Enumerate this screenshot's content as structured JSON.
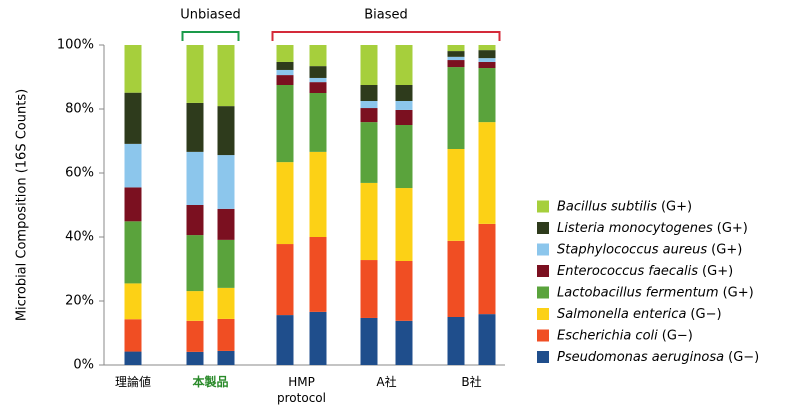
{
  "chart_data": {
    "type": "stacked_bar",
    "y_label": "Microbial Composition (16S Counts)",
    "categories": [
      "理論値",
      "本製品",
      null,
      "HMP protocol",
      null,
      "A社",
      null,
      "B社",
      null
    ],
    "highlight_category": "本製品",
    "highlight_color": "#2a8a2a",
    "ylim": [
      0,
      100
    ],
    "yticks": [
      {
        "value": 0,
        "label": "0%"
      },
      {
        "value": 20,
        "label": "20%"
      },
      {
        "value": 40,
        "label": "40%"
      },
      {
        "value": 60,
        "label": "60%"
      },
      {
        "value": 80,
        "label": "80%"
      },
      {
        "value": 100,
        "label": "100%"
      }
    ],
    "annotations": [
      {
        "text": "Unbiased",
        "from": 1,
        "to": 2,
        "color": "#1a9a4a"
      },
      {
        "text": "Biased",
        "from": 3,
        "to": 8,
        "color": "#d42a3a"
      }
    ],
    "series": [
      {
        "name": "Pseudomonas aeruginosa",
        "gram": "(G−)",
        "color": "#1f4e8c",
        "values": [
          4.2,
          4.1,
          4.4,
          15.6,
          16.6,
          14.7,
          13.8,
          15,
          15.9
        ]
      },
      {
        "name": "Escherichia coli",
        "gram": "(G−)",
        "color": "#f04e23",
        "values": [
          10.1,
          9.7,
          10,
          22.2,
          23.4,
          18.1,
          18.7,
          23.8,
          28.2
        ]
      },
      {
        "name": "Salmonella enterica",
        "gram": "(G−)",
        "color": "#fcd116",
        "values": [
          11.2,
          9.3,
          9.7,
          25.6,
          26.6,
          24.1,
          22.8,
          28.7,
          31.8
        ]
      },
      {
        "name": "Lactobacillus fermentum",
        "gram": "(G+)",
        "color": "#5aa33c",
        "values": [
          19.4,
          17.5,
          15,
          24.1,
          18.4,
          19,
          19.7,
          25.6,
          16.9
        ]
      },
      {
        "name": "Enterococcus faecalis",
        "gram": "(G+)",
        "color": "#7b1020",
        "values": [
          10.6,
          9.4,
          9.7,
          3.1,
          3.4,
          4.4,
          4.7,
          2.2,
          1.9
        ]
      },
      {
        "name": "Staphylococcus aureus",
        "gram": "(G+)",
        "color": "#8cc6ec",
        "values": [
          13.6,
          16.6,
          16.8,
          1.6,
          1.3,
          2.2,
          2.8,
          1,
          1.2
        ]
      },
      {
        "name": "Listeria monocytogenes",
        "gram": "(G+)",
        "color": "#2e3b1c",
        "values": [
          16,
          15.3,
          15.3,
          2.5,
          3.7,
          5,
          5,
          1.8,
          2.5
        ]
      },
      {
        "name": "Bacillus subtilis",
        "gram": "(G+)",
        "color": "#a6cf3c",
        "values": [
          14.9,
          18.1,
          19.1,
          5.3,
          6.6,
          12.5,
          12.5,
          1.9,
          1.6
        ]
      }
    ]
  }
}
